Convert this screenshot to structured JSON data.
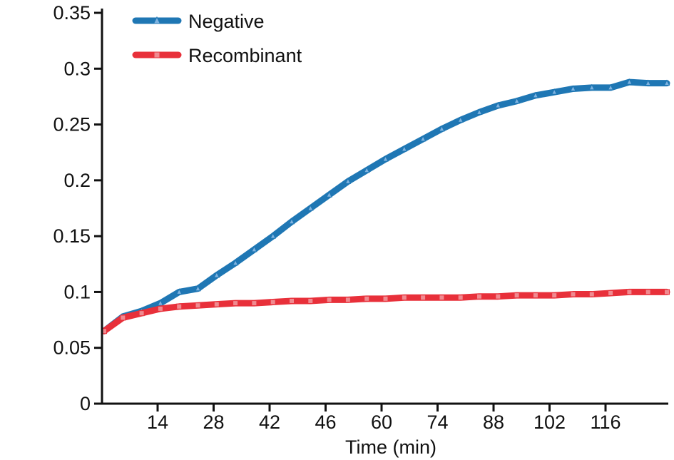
{
  "chart_data": {
    "type": "line",
    "xlabel": "Time (min)",
    "ylabel": "",
    "x_tick_labels": [
      "14",
      "28",
      "42",
      "46",
      "60",
      "74",
      "88",
      "102",
      "116"
    ],
    "y_tick_labels": [
      "0",
      "0.05",
      "0.1",
      "0.15",
      "0.2",
      "0.25",
      "0.3",
      "0.35"
    ],
    "ylim": [
      0,
      0.35
    ],
    "grid": false,
    "legend_position": "top-left",
    "series": [
      {
        "name": "Negative",
        "color": "#1f77b4",
        "marker": "triangle",
        "values": [
          0.065,
          0.078,
          0.083,
          0.09,
          0.1,
          0.103,
          0.115,
          0.126,
          0.138,
          0.15,
          0.163,
          0.175,
          0.187,
          0.199,
          0.209,
          0.219,
          0.228,
          0.237,
          0.246,
          0.254,
          0.261,
          0.267,
          0.271,
          0.276,
          0.279,
          0.282,
          0.283,
          0.283,
          0.288,
          0.287,
          0.287
        ]
      },
      {
        "name": "Recombinant",
        "color": "#e8303a",
        "marker": "square",
        "values": [
          0.065,
          0.077,
          0.081,
          0.085,
          0.087,
          0.088,
          0.089,
          0.09,
          0.09,
          0.091,
          0.092,
          0.092,
          0.093,
          0.093,
          0.094,
          0.094,
          0.095,
          0.095,
          0.095,
          0.095,
          0.096,
          0.096,
          0.097,
          0.097,
          0.097,
          0.098,
          0.098,
          0.099,
          0.1,
          0.1,
          0.1
        ]
      }
    ]
  }
}
